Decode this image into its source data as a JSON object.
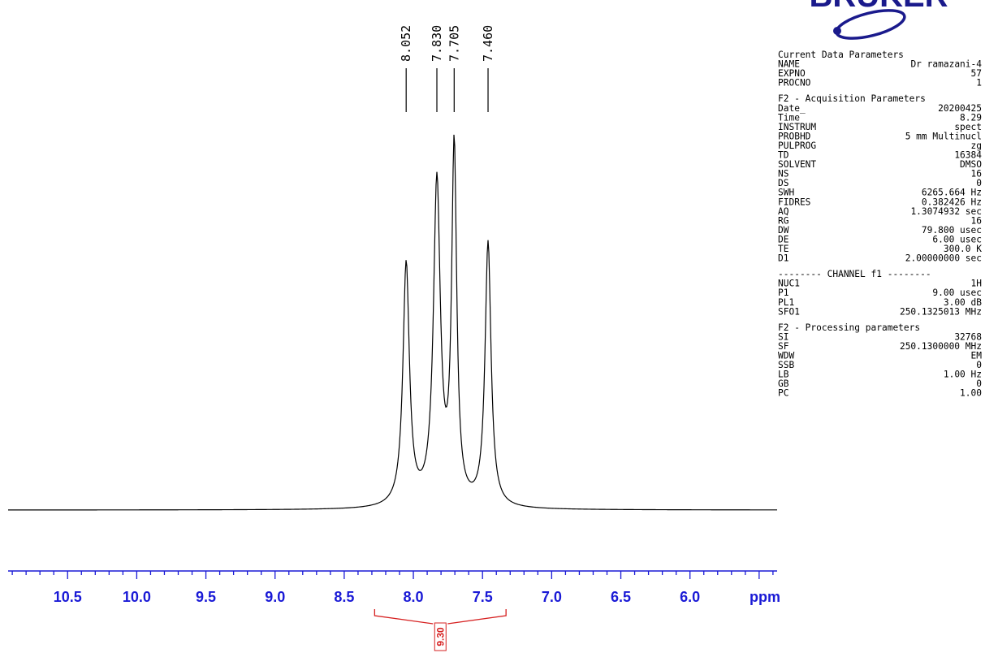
{
  "logo": {
    "text": "BRUKER",
    "color": "#1a1a8c"
  },
  "chart_data": {
    "type": "line",
    "xlabel": "ppm",
    "x_reversed": true,
    "xlim": [
      10.93,
      5.37
    ],
    "x_ticks": [
      10.5,
      10.0,
      9.5,
      9.0,
      8.5,
      8.0,
      7.5,
      7.0,
      6.5,
      6.0
    ],
    "x_tick_labels": [
      "10.5",
      "10.0",
      "9.5",
      "9.0",
      "8.5",
      "8.0",
      "7.5",
      "7.0",
      "6.5",
      "6.0"
    ],
    "axis_color": "#1a1ad6",
    "line_color": "#000000",
    "peaks": [
      {
        "label": "8.052",
        "ppm": 8.052,
        "intensity": 0.67,
        "width": 0.028
      },
      {
        "label": "7.830",
        "ppm": 7.83,
        "intensity": 0.89,
        "width": 0.03
      },
      {
        "label": "7.705",
        "ppm": 7.705,
        "intensity": 0.98,
        "width": 0.022
      },
      {
        "label": "7.460",
        "ppm": 7.46,
        "intensity": 0.73,
        "width": 0.026
      }
    ],
    "integral": {
      "from": 8.28,
      "to": 7.33,
      "value": "9.30",
      "color": "#d62020"
    }
  },
  "parameters": [
    {
      "heading": "Current Data Parameters",
      "rows": [
        [
          "NAME",
          "Dr ramazani-4"
        ],
        [
          "EXPNO",
          "57"
        ],
        [
          "PROCNO",
          "1"
        ]
      ]
    },
    {
      "heading": "F2 - Acquisition Parameters",
      "rows": [
        [
          "Date_",
          "20200425"
        ],
        [
          "Time",
          "8.29"
        ],
        [
          "INSTRUM",
          "spect"
        ],
        [
          "PROBHD",
          "5 mm Multinucl"
        ],
        [
          "PULPROG",
          "zg"
        ],
        [
          "TD",
          "16384"
        ],
        [
          "SOLVENT",
          "DMSO"
        ],
        [
          "NS",
          "16"
        ],
        [
          "DS",
          "0"
        ],
        [
          "SWH",
          "6265.664 Hz"
        ],
        [
          "FIDRES",
          "0.382426 Hz"
        ],
        [
          "AQ",
          "1.3074932 sec"
        ],
        [
          "RG",
          "16"
        ],
        [
          "DW",
          "79.800 usec"
        ],
        [
          "DE",
          "6.00 usec"
        ],
        [
          "TE",
          "300.0 K"
        ],
        [
          "D1",
          "2.00000000 sec"
        ]
      ]
    },
    {
      "heading": "-------- CHANNEL f1 --------",
      "rows": [
        [
          "NUC1",
          "1H"
        ],
        [
          "P1",
          "9.00 usec"
        ],
        [
          "PL1",
          "3.00 dB"
        ],
        [
          "SFO1",
          "250.1325013 MHz"
        ]
      ]
    },
    {
      "heading": "F2 - Processing parameters",
      "rows": [
        [
          "SI",
          "32768"
        ],
        [
          "SF",
          "250.1300000 MHz"
        ],
        [
          "WDW",
          "EM"
        ],
        [
          "SSB",
          "0"
        ],
        [
          "LB",
          "1.00 Hz"
        ],
        [
          "GB",
          "0"
        ],
        [
          "PC",
          "1.00"
        ]
      ]
    }
  ]
}
